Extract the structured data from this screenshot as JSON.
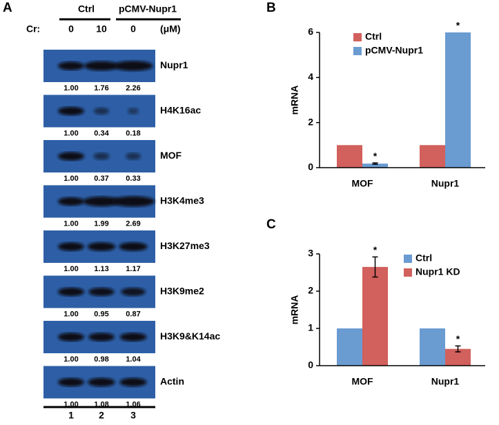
{
  "blot": {
    "panel": "A",
    "groups": [
      "Ctrl",
      "pCMV-Nupr1"
    ],
    "treatment_label": "Cr:",
    "doses": [
      "0",
      "10",
      "0"
    ],
    "unit": "(μM)",
    "rows": [
      {
        "name": "Nupr1",
        "values": [
          1.0,
          1.76,
          2.26
        ],
        "value_labels": [
          "1.00",
          "1.76",
          "2.26"
        ]
      },
      {
        "name": "H4K16ac",
        "values": [
          1.0,
          0.34,
          0.18
        ],
        "value_labels": [
          "1.00",
          "0.34",
          "0.18"
        ]
      },
      {
        "name": "MOF",
        "values": [
          1.0,
          0.37,
          0.33
        ],
        "value_labels": [
          "1.00",
          "0.37",
          "0.33"
        ]
      },
      {
        "name": "H3K4me3",
        "values": [
          1.0,
          1.99,
          2.69
        ],
        "value_labels": [
          "1.00",
          "1.99",
          "2.69"
        ]
      },
      {
        "name": "H3K27me3",
        "values": [
          1.0,
          1.13,
          1.17
        ],
        "value_labels": [
          "1.00",
          "1.13",
          "1.17"
        ]
      },
      {
        "name": "H3K9me2",
        "values": [
          1.0,
          0.95,
          0.87
        ],
        "value_labels": [
          "1.00",
          "0.95",
          "0.87"
        ]
      },
      {
        "name": "H3K9&K14ac",
        "values": [
          1.0,
          0.98,
          1.04
        ],
        "value_labels": [
          "1.00",
          "0.98",
          "1.04"
        ]
      },
      {
        "name": "Actin",
        "values": [
          1.0,
          1.08,
          1.06
        ],
        "value_labels": [
          "1.00",
          "1.08",
          "1.06"
        ]
      }
    ],
    "lanes": [
      "1",
      "2",
      "3"
    ]
  },
  "chart_data": [
    {
      "type": "bar",
      "panel": "B",
      "y_label": "mRNA",
      "categories": [
        "MOF",
        "Nupr1"
      ],
      "series": [
        {
          "name": "Ctrl",
          "color": "#d2605c",
          "values": [
            1,
            1
          ],
          "errors": [
            null,
            null
          ],
          "annotations": [
            null,
            null
          ]
        },
        {
          "name": "pCMV-Nupr1",
          "color": "#6a9bd1",
          "values": [
            0.18,
            6
          ],
          "errors": [
            0.03,
            null
          ],
          "annotations": [
            "*",
            "*"
          ]
        }
      ],
      "ylim": [
        0,
        6
      ],
      "yticks": [
        0,
        2,
        4,
        6
      ],
      "legend": "top-left"
    },
    {
      "type": "bar",
      "panel": "C",
      "y_label": "mRNA",
      "categories": [
        "MOF",
        "Nupr1"
      ],
      "series": [
        {
          "name": "Ctrl",
          "color": "#6a9bd1",
          "values": [
            1,
            1
          ],
          "errors": [
            null,
            null
          ],
          "annotations": [
            null,
            null
          ]
        },
        {
          "name": "Nupr1 KD",
          "color": "#d2605c",
          "values": [
            2.65,
            0.45
          ],
          "errors": [
            0.27,
            0.08
          ],
          "annotations": [
            "*",
            "*"
          ]
        }
      ],
      "ylim": [
        0,
        3
      ],
      "yticks": [
        0,
        1,
        2,
        3
      ],
      "legend": "top-right"
    }
  ]
}
